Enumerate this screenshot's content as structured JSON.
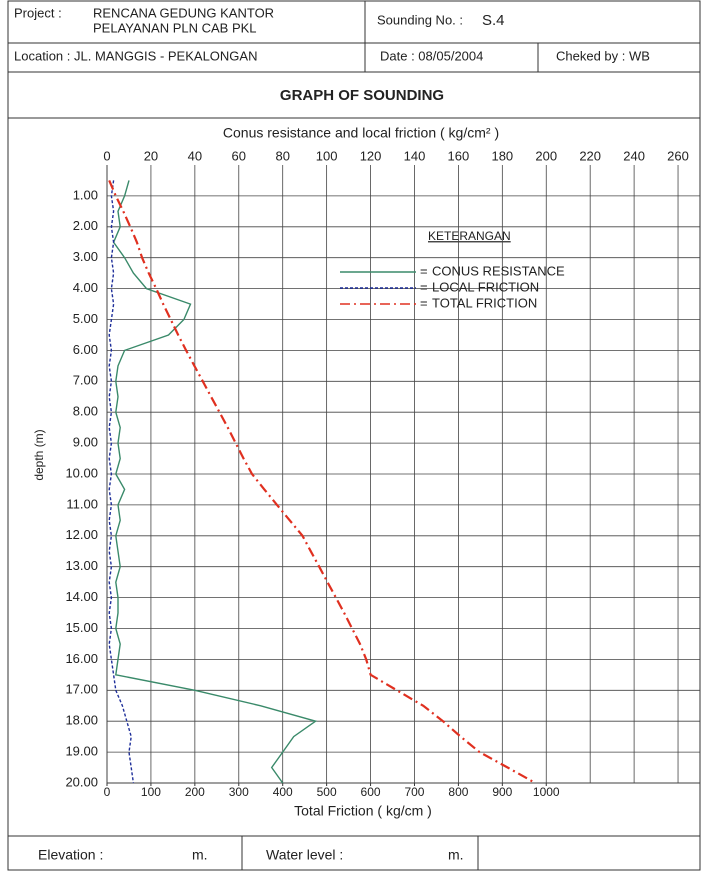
{
  "form": {
    "project_label": "Project :",
    "project": [
      "RENCANA GEDUNG KANTOR",
      "PELAYANAN PLN CAB PKL"
    ],
    "sounding_label": "Sounding No. :",
    "sounding_no": "S.4",
    "location": "Location : JL. MANGGIS - PEKALONGAN",
    "date": "Date : 08/05/2004",
    "checked": "Cheked by : WB",
    "elevation_label": "Elevation :",
    "elevation_unit": "m.",
    "water_label": "Water level :",
    "water_unit": "m."
  },
  "chart_data": {
    "type": "line",
    "title": "GRAPH OF SOUNDING",
    "xlabel": "Conus resistance and local friction ( kg/cm² )",
    "x2label": "Total Friction  ( kg/cm )",
    "ylabel": "depth (m)",
    "legend_title": "KETERANGAN",
    "depths": [
      0,
      0.5,
      1,
      1.5,
      2,
      2.5,
      3,
      3.5,
      4,
      4.5,
      5,
      5.5,
      6,
      6.5,
      7,
      7.5,
      8,
      8.5,
      9,
      9.5,
      10,
      10.5,
      11,
      11.5,
      12,
      12.5,
      13,
      13.5,
      14,
      14.5,
      15,
      15.5,
      16,
      16.5,
      17,
      17.5,
      18,
      18.5,
      19,
      19.5,
      20
    ],
    "xlim": [
      0,
      270
    ],
    "xticks": [
      0,
      20,
      40,
      60,
      80,
      100,
      120,
      140,
      160,
      180,
      200,
      220,
      240,
      260
    ],
    "x2lim": [
      0,
      1350
    ],
    "x2ticks": [
      0,
      100,
      200,
      300,
      400,
      500,
      600,
      700,
      800,
      900,
      1000
    ],
    "ylim": [
      0,
      20
    ],
    "yticks": [
      {
        "value": 1,
        "label": "1.00"
      },
      {
        "value": 2,
        "label": "2.00"
      },
      {
        "value": 3,
        "label": "3.00"
      },
      {
        "value": 4,
        "label": "4.00"
      },
      {
        "value": 5,
        "label": "5.00"
      },
      {
        "value": 6,
        "label": "6.00"
      },
      {
        "value": 7,
        "label": "7.00"
      },
      {
        "value": 8,
        "label": "8.00"
      },
      {
        "value": 9,
        "label": "9.00"
      },
      {
        "value": 10,
        "label": "10.00"
      },
      {
        "value": 11,
        "label": "11.00"
      },
      {
        "value": 12,
        "label": "12.00"
      },
      {
        "value": 13,
        "label": "13.00"
      },
      {
        "value": 14,
        "label": "14.00"
      },
      {
        "value": 15,
        "label": "15.00"
      },
      {
        "value": 16,
        "label": "16.00"
      },
      {
        "value": 17,
        "label": "17.00"
      },
      {
        "value": 18,
        "label": "18.00"
      },
      {
        "value": 19,
        "label": "19.00"
      },
      {
        "value": 20,
        "label": "20.00"
      }
    ],
    "grid": true,
    "series": [
      {
        "name": "CONUS RESISTANCE",
        "color": "#3a8a6a",
        "axis": "x",
        "values": [
          null,
          10,
          8,
          5,
          6,
          3,
          8,
          12,
          18,
          38,
          35,
          28,
          8,
          5,
          4,
          5,
          4,
          6,
          5,
          6,
          4,
          8,
          5,
          6,
          4,
          5,
          6,
          4,
          5,
          5,
          4,
          6,
          5,
          4,
          40,
          70,
          95,
          85,
          80,
          75,
          80
        ]
      },
      {
        "name": "LOCAL FRICTION",
        "color": "#1f2f9a",
        "axis": "x",
        "values": [
          null,
          3,
          2,
          3,
          2,
          3,
          2,
          3,
          2,
          3,
          2,
          1,
          2,
          1,
          2,
          1,
          2,
          1,
          2,
          1,
          2,
          1,
          2,
          1,
          2,
          1,
          2,
          1,
          2,
          1,
          2,
          1,
          2,
          3,
          4,
          7,
          9,
          11,
          10,
          11,
          12
        ]
      },
      {
        "name": "TOTAL FRICTION",
        "color": "#e03020",
        "axis": "x2",
        "values": [
          null,
          5,
          20,
          37,
          53,
          68,
          80,
          95,
          112,
          128,
          145,
          162,
          180,
          199,
          218,
          237,
          256,
          275,
          293,
          311,
          330,
          358,
          387,
          416,
          445,
          464,
          483,
          502,
          521,
          540,
          558,
          576,
          590,
          600,
          660,
          720,
          765,
          805,
          848,
          912,
          975
        ]
      }
    ]
  }
}
